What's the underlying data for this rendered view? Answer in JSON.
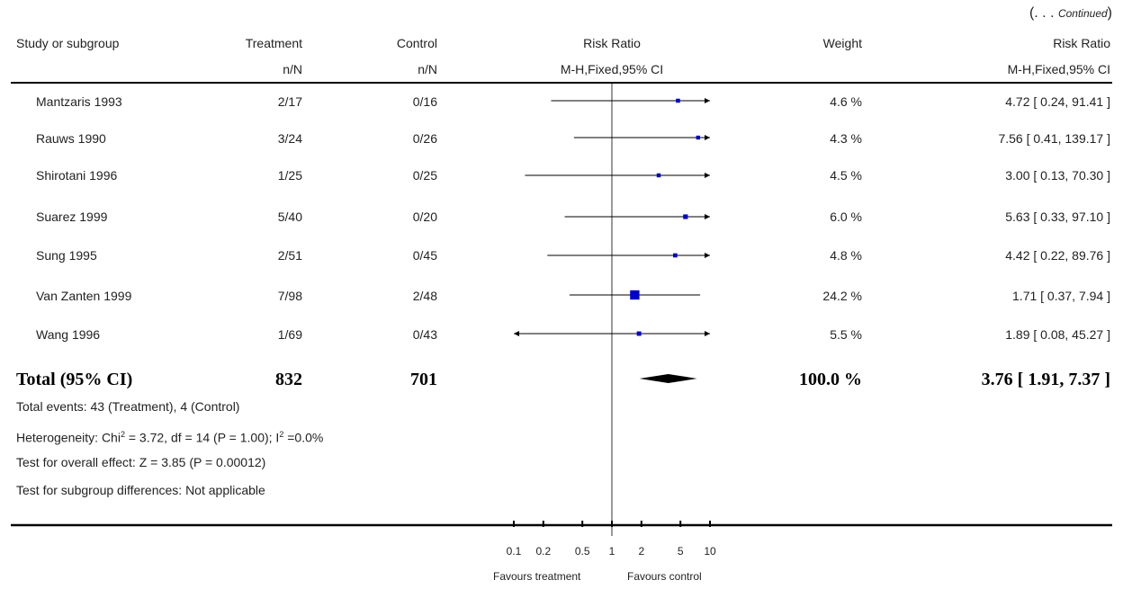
{
  "continued": {
    "open": "(. . . ",
    "word": "Continued",
    "close": ")"
  },
  "headers": {
    "study": "Study or subgroup",
    "treatment": "Treatment",
    "treatment_sub": "n/N",
    "control": "Control",
    "control_sub": "n/N",
    "rr": "Risk Ratio",
    "rr_sub": "M-H,Fixed,95% CI",
    "weight": "Weight",
    "rr2": "Risk Ratio",
    "rr2_sub": "M-H,Fixed,95% CI"
  },
  "rows": [
    {
      "study": "Mantzaris 1993",
      "treatment": "2/17",
      "control": "0/16",
      "weight": "4.6 %",
      "ci_text": "4.72 [ 0.24, 91.41 ]"
    },
    {
      "study": "Rauws 1990",
      "treatment": "3/24",
      "control": "0/26",
      "weight": "4.3 %",
      "ci_text": "7.56 [ 0.41, 139.17 ]"
    },
    {
      "study": "Shirotani 1996",
      "treatment": "1/25",
      "control": "0/25",
      "weight": "4.5 %",
      "ci_text": "3.00 [ 0.13, 70.30 ]"
    },
    {
      "study": "Suarez 1999",
      "treatment": "5/40",
      "control": "0/20",
      "weight": "6.0 %",
      "ci_text": "5.63 [ 0.33, 97.10 ]"
    },
    {
      "study": "Sung 1995",
      "treatment": "2/51",
      "control": "0/45",
      "weight": "4.8 %",
      "ci_text": "4.42 [ 0.22, 89.76 ]"
    },
    {
      "study": "Van Zanten 1999",
      "treatment": "7/98",
      "control": "2/48",
      "weight": "24.2 %",
      "ci_text": "1.71 [ 0.37, 7.94 ]"
    },
    {
      "study": "Wang 1996",
      "treatment": "1/69",
      "control": "0/43",
      "weight": "5.5 %",
      "ci_text": "1.89 [ 0.08, 45.27 ]"
    }
  ],
  "total": {
    "label": "Total (95% CI)",
    "treatment": "832",
    "control": "701",
    "weight": "100.0 %",
    "ci_text": "3.76 [ 1.91, 7.37 ]"
  },
  "footnotes": {
    "events": "Total events: 43 (Treatment), 4 (Control)",
    "heterogeneity_a": "Heterogeneity: Chi",
    "heterogeneity_b": "2",
    "heterogeneity_c": " = 3.72, df = 14 (P = 1.00); I",
    "heterogeneity_d": "2",
    "heterogeneity_e": " =0.0%",
    "overall": "Test for overall effect: Z = 3.85 (P = 0.00012)",
    "subgroup": "Test for subgroup differences: Not applicable"
  },
  "axis": {
    "favours_left": "Favours treatment",
    "favours_right": "Favours control"
  },
  "colors": {
    "marker": "#0000cc",
    "line": "#000000",
    "diamond": "#000000"
  },
  "chart_data": {
    "type": "forest",
    "scale": "log",
    "xlim": [
      0.1,
      10
    ],
    "ticks": [
      {
        "value": 0.1,
        "label": "0.1"
      },
      {
        "value": 0.2,
        "label": "0.2"
      },
      {
        "value": 0.5,
        "label": "0.5"
      },
      {
        "value": 1,
        "label": "1"
      },
      {
        "value": 2,
        "label": "2"
      },
      {
        "value": 5,
        "label": "5"
      },
      {
        "value": 10,
        "label": "10"
      }
    ],
    "studies": [
      {
        "name": "Mantzaris 1993",
        "rr": 4.72,
        "lo": 0.24,
        "hi": 91.41,
        "weight": 4.6
      },
      {
        "name": "Rauws 1990",
        "rr": 7.56,
        "lo": 0.41,
        "hi": 139.17,
        "weight": 4.3
      },
      {
        "name": "Shirotani 1996",
        "rr": 3.0,
        "lo": 0.13,
        "hi": 70.3,
        "weight": 4.5
      },
      {
        "name": "Suarez 1999",
        "rr": 5.63,
        "lo": 0.33,
        "hi": 97.1,
        "weight": 6.0
      },
      {
        "name": "Sung 1995",
        "rr": 4.42,
        "lo": 0.22,
        "hi": 89.76,
        "weight": 4.8
      },
      {
        "name": "Van Zanten 1999",
        "rr": 1.71,
        "lo": 0.37,
        "hi": 7.94,
        "weight": 24.2
      },
      {
        "name": "Wang 1996",
        "rr": 1.89,
        "lo": 0.08,
        "hi": 45.27,
        "weight": 5.5
      }
    ],
    "total": {
      "rr": 3.76,
      "lo": 1.91,
      "hi": 7.37
    }
  }
}
